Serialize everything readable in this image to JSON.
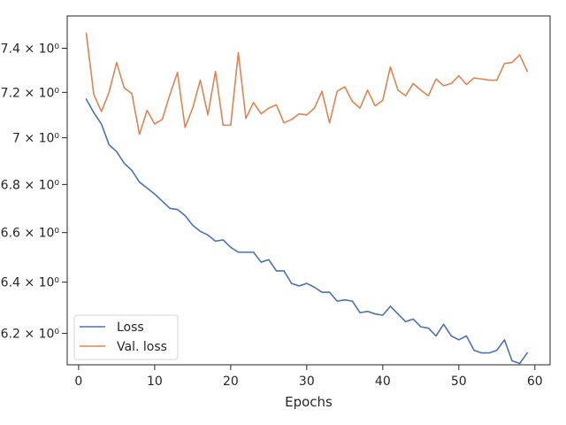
{
  "chart_data": {
    "type": "line",
    "title": "",
    "xlabel": "Epochs",
    "ylabel": "",
    "yscale": "log",
    "xlim": [
      -1.5,
      62
    ],
    "ylim": [
      6.08,
      7.55
    ],
    "grid": false,
    "legend_position": "lower-left",
    "x_ticks": [
      0,
      10,
      20,
      30,
      40,
      50,
      60
    ],
    "x_tick_labels": [
      "0",
      "10",
      "20",
      "30",
      "40",
      "50",
      "60"
    ],
    "y_ticks": [
      6.2,
      6.4,
      6.6,
      6.8,
      7.0,
      7.2,
      7.4
    ],
    "y_tick_labels": [
      "6.2 × 10⁰",
      "6.4 × 10⁰",
      "6.6 × 10⁰",
      "6.8 × 10⁰",
      "7 × 10⁰",
      "7.2 × 10⁰",
      "7.4 × 10⁰"
    ],
    "x": [
      1,
      2,
      3,
      4,
      5,
      6,
      7,
      8,
      9,
      10,
      11,
      12,
      13,
      14,
      15,
      16,
      17,
      18,
      19,
      20,
      21,
      22,
      23,
      24,
      25,
      26,
      27,
      28,
      29,
      30,
      31,
      32,
      33,
      34,
      35,
      36,
      37,
      38,
      39,
      40,
      41,
      42,
      43,
      44,
      45,
      46,
      47,
      48,
      49,
      50,
      51,
      52,
      53,
      54,
      55,
      56,
      57,
      58,
      59
    ],
    "series": [
      {
        "name": "Loss",
        "color": "#4c72b0",
        "values": [
          7.17,
          7.11,
          7.06,
          6.97,
          6.94,
          6.89,
          6.86,
          6.81,
          6.785,
          6.76,
          6.73,
          6.7,
          6.695,
          6.67,
          6.63,
          6.605,
          6.59,
          6.565,
          6.57,
          6.54,
          6.52,
          6.52,
          6.52,
          6.48,
          6.49,
          6.445,
          6.445,
          6.395,
          6.385,
          6.395,
          6.38,
          6.36,
          6.36,
          6.325,
          6.33,
          6.325,
          6.28,
          6.285,
          6.275,
          6.27,
          6.305,
          6.275,
          6.245,
          6.255,
          6.225,
          6.22,
          6.19,
          6.235,
          6.19,
          6.175,
          6.19,
          6.135,
          6.125,
          6.125,
          6.135,
          6.175,
          6.095,
          6.085,
          6.125
        ]
      },
      {
        "name": "Val. loss",
        "color": "#dd8452",
        "values": [
          7.47,
          7.19,
          7.115,
          7.2,
          7.335,
          7.22,
          7.195,
          7.015,
          7.12,
          7.06,
          7.08,
          7.19,
          7.29,
          7.045,
          7.13,
          7.255,
          7.1,
          7.295,
          7.055,
          7.055,
          7.38,
          7.085,
          7.155,
          7.105,
          7.13,
          7.145,
          7.065,
          7.08,
          7.105,
          7.1,
          7.13,
          7.205,
          7.065,
          7.205,
          7.225,
          7.16,
          7.13,
          7.21,
          7.14,
          7.165,
          7.315,
          7.21,
          7.185,
          7.24,
          7.21,
          7.185,
          7.26,
          7.23,
          7.24,
          7.275,
          7.235,
          7.265,
          7.26,
          7.255,
          7.255,
          7.33,
          7.335,
          7.37,
          7.295
        ]
      }
    ]
  }
}
